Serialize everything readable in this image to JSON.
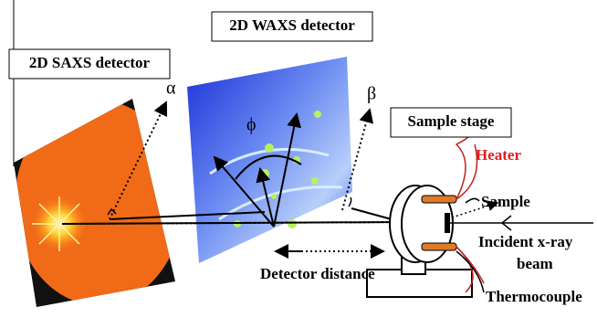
{
  "labels": {
    "saxs": "2D SAXS detector",
    "waxs": "2D WAXS detector",
    "stage": "Sample stage",
    "heater": "Heater",
    "sample": "Sample",
    "beam_line1": "Incident x-ray",
    "beam_line2": "beam",
    "distance": "Detector distance",
    "thermocouple": "Thermocouple",
    "alpha": "α",
    "phi": "ϕ",
    "beta": "β"
  }
}
